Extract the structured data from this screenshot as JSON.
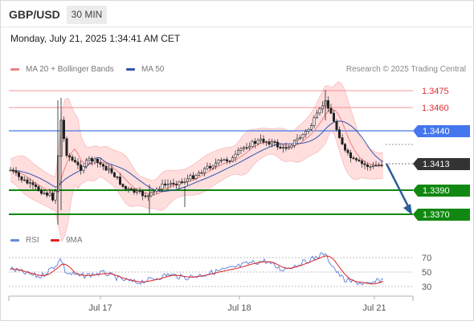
{
  "header": {
    "symbol": "GBP/USD",
    "timeframe": "30 MIN",
    "datetime": "Monday, July 21, 2025 1:34:41 AM CET"
  },
  "legend": {
    "ma20_label": "MA 20 + Bollinger Bands",
    "ma50_label": "MA 50",
    "copyright": "Research © 2025 Trading Central",
    "rsi_label": "RSI",
    "rsi_ma_label": "9MA"
  },
  "colors": {
    "ma20": "#f08080",
    "ma50": "#3355aa",
    "bollinger_fill": "#ffdede",
    "resistance": "#f07070",
    "pivot_blue": "#4477ee",
    "support": "#118811",
    "current": "#333333",
    "arrow": "#2f5f9a",
    "candle": "#222222",
    "rsi": "#6688dd",
    "rsi_ma": "#dd2222"
  },
  "levels": [
    {
      "label": "1.3475",
      "type": "resistance"
    },
    {
      "label": "1.3460",
      "type": "resistance"
    },
    {
      "label": "1.3440",
      "type": "pivot"
    },
    {
      "label": "1.3413",
      "type": "current"
    },
    {
      "label": "1.3390",
      "type": "support"
    },
    {
      "label": "1.3370",
      "type": "support"
    }
  ],
  "rsi_axis": [
    "70",
    "50",
    "30"
  ],
  "x_axis": [
    "Jul 17",
    "Jul 18",
    "Jul 21"
  ]
}
